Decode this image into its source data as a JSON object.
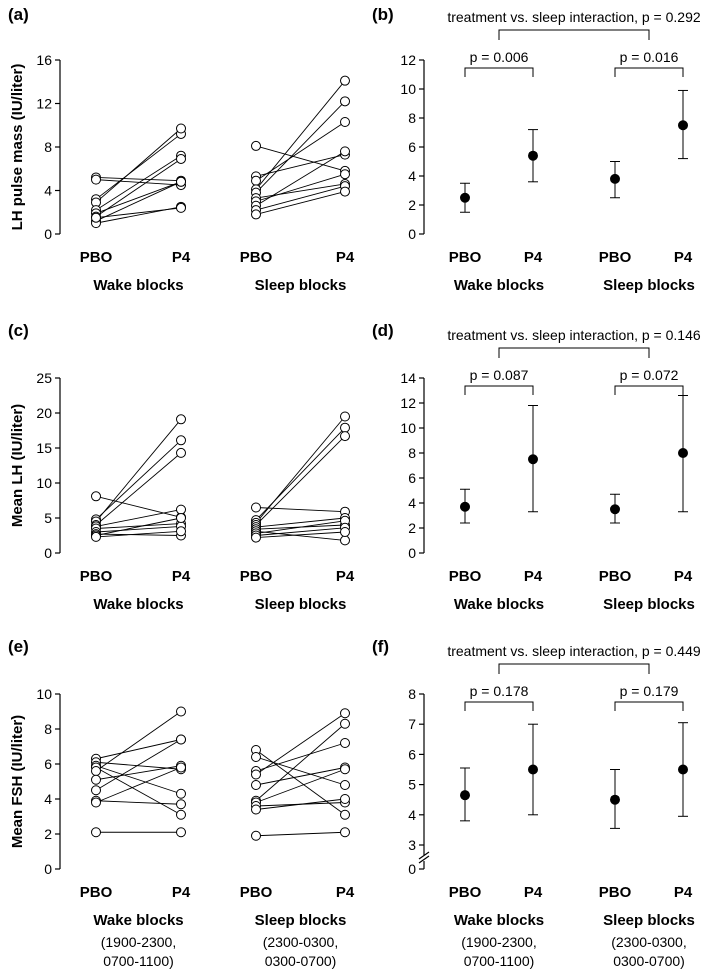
{
  "chart_data": [
    {
      "id": "a",
      "panel_label": "(a)",
      "type": "line",
      "ylabel": "LH pulse mass (IU/liter)",
      "ylim": [
        0,
        16
      ],
      "yticks": [
        0,
        4,
        8,
        12,
        16
      ],
      "categories": [
        "PBO",
        "P4",
        "PBO",
        "P4"
      ],
      "groups": [
        {
          "label": "Wake blocks",
          "sublabel": ""
        },
        {
          "label": "Sleep blocks",
          "sublabel": ""
        }
      ],
      "pairs": [
        [
          [
            5.2,
            4.9
          ],
          [
            5.0,
            4.5
          ],
          [
            3.2,
            9.2
          ],
          [
            2.9,
            9.7
          ],
          [
            2.2,
            7.2
          ],
          [
            1.9,
            4.8
          ],
          [
            1.6,
            6.9
          ],
          [
            1.2,
            4.8
          ],
          [
            1.0,
            2.5
          ],
          [
            1.5,
            2.4
          ]
        ],
        [
          [
            8.1,
            5.8
          ],
          [
            5.3,
            7.3
          ],
          [
            4.9,
            10.3
          ],
          [
            4.1,
            14.1
          ],
          [
            3.8,
            12.2
          ],
          [
            3.3,
            4.6
          ],
          [
            3.0,
            5.5
          ],
          [
            2.6,
            7.6
          ],
          [
            2.2,
            4.4
          ],
          [
            1.8,
            3.9
          ]
        ]
      ]
    },
    {
      "id": "b",
      "panel_label": "(b)",
      "type": "scatter",
      "ylim": [
        0,
        12
      ],
      "yticks": [
        0,
        2,
        4,
        6,
        8,
        10,
        12
      ],
      "categories": [
        "PBO",
        "P4",
        "PBO",
        "P4"
      ],
      "groups": [
        {
          "label": "Wake blocks",
          "sublabel": ""
        },
        {
          "label": "Sleep blocks",
          "sublabel": ""
        }
      ],
      "points": [
        {
          "y": 2.5,
          "lo": 1.5,
          "hi": 3.5
        },
        {
          "y": 5.4,
          "lo": 3.6,
          "hi": 7.2
        },
        {
          "y": 3.8,
          "lo": 2.5,
          "hi": 5.0
        },
        {
          "y": 7.5,
          "lo": 5.2,
          "hi": 9.9
        }
      ],
      "pvals": [
        "p = 0.006",
        "p = 0.016"
      ],
      "interaction": "treatment vs. sleep interaction, p = 0.292"
    },
    {
      "id": "c",
      "panel_label": "(c)",
      "type": "line",
      "ylabel": "Mean LH (IU/liter)",
      "ylim": [
        0,
        25
      ],
      "yticks": [
        0,
        5,
        10,
        15,
        20,
        25
      ],
      "categories": [
        "PBO",
        "P4",
        "PBO",
        "P4"
      ],
      "groups": [
        {
          "label": "Wake blocks",
          "sublabel": ""
        },
        {
          "label": "Sleep blocks",
          "sublabel": ""
        }
      ],
      "pairs": [
        [
          [
            8.1,
            5.1
          ],
          [
            4.8,
            16.1
          ],
          [
            4.5,
            19.1
          ],
          [
            4.0,
            14.3
          ],
          [
            3.8,
            6.2
          ],
          [
            3.5,
            4.2
          ],
          [
            3.0,
            3.8
          ],
          [
            2.7,
            2.5
          ],
          [
            2.5,
            5.0
          ],
          [
            2.3,
            3.1
          ]
        ],
        [
          [
            6.5,
            5.9
          ],
          [
            4.7,
            17.9
          ],
          [
            4.3,
            19.5
          ],
          [
            4.0,
            16.7
          ],
          [
            3.7,
            5.0
          ],
          [
            3.4,
            4.0
          ],
          [
            3.1,
            1.8
          ],
          [
            2.8,
            4.6
          ],
          [
            2.5,
            3.6
          ],
          [
            2.2,
            3.0
          ]
        ]
      ]
    },
    {
      "id": "d",
      "panel_label": "(d)",
      "type": "scatter",
      "ylim": [
        0,
        14
      ],
      "yticks": [
        0,
        2,
        4,
        6,
        8,
        10,
        12,
        14
      ],
      "categories": [
        "PBO",
        "P4",
        "PBO",
        "P4"
      ],
      "groups": [
        {
          "label": "Wake blocks",
          "sublabel": ""
        },
        {
          "label": "Sleep blocks",
          "sublabel": ""
        }
      ],
      "points": [
        {
          "y": 3.7,
          "lo": 2.4,
          "hi": 5.1
        },
        {
          "y": 7.5,
          "lo": 3.3,
          "hi": 11.8
        },
        {
          "y": 3.5,
          "lo": 2.4,
          "hi": 4.7
        },
        {
          "y": 8.0,
          "lo": 3.3,
          "hi": 12.6
        }
      ],
      "pvals": [
        "p = 0.087",
        "p = 0.072"
      ],
      "interaction": "treatment vs. sleep interaction, p = 0.146"
    },
    {
      "id": "e",
      "panel_label": "(e)",
      "type": "line",
      "ylabel": "Mean FSH (IU/liter)",
      "ylim": [
        0,
        10
      ],
      "yticks": [
        0,
        2,
        4,
        6,
        8,
        10
      ],
      "categories": [
        "PBO",
        "P4",
        "PBO",
        "P4"
      ],
      "groups": [
        {
          "label": "Wake blocks",
          "sublabel": "(1900-2300, 0700-1100)"
        },
        {
          "label": "Sleep blocks",
          "sublabel": "(2300-0300, 0300-0700)"
        }
      ],
      "pairs": [
        [
          [
            6.3,
            7.4
          ],
          [
            6.1,
            5.7
          ],
          [
            5.9,
            4.3
          ],
          [
            5.8,
            3.1
          ],
          [
            5.6,
            9.0
          ],
          [
            5.1,
            5.9
          ],
          [
            4.5,
            7.4
          ],
          [
            3.9,
            3.7
          ],
          [
            3.8,
            5.8
          ],
          [
            2.1,
            2.1
          ]
        ],
        [
          [
            6.8,
            3.1
          ],
          [
            6.4,
            4.8
          ],
          [
            5.6,
            7.2
          ],
          [
            5.4,
            8.9
          ],
          [
            4.8,
            5.8
          ],
          [
            3.9,
            8.3
          ],
          [
            3.8,
            5.7
          ],
          [
            3.6,
            3.8
          ],
          [
            3.4,
            4.0
          ],
          [
            1.9,
            2.1
          ]
        ]
      ]
    },
    {
      "id": "f",
      "panel_label": "(f)",
      "type": "scatter",
      "ylim": [
        3,
        8
      ],
      "yticks": [
        0,
        3,
        4,
        5,
        6,
        7,
        8
      ],
      "axis_break": true,
      "categories": [
        "PBO",
        "P4",
        "PBO",
        "P4"
      ],
      "groups": [
        {
          "label": "Wake blocks",
          "sublabel": "(1900-2300, 0700-1100)"
        },
        {
          "label": "Sleep blocks",
          "sublabel": "(2300-0300, 0300-0700)"
        }
      ],
      "points": [
        {
          "y": 4.65,
          "lo": 3.8,
          "hi": 5.55
        },
        {
          "y": 5.5,
          "lo": 4.0,
          "hi": 7.0
        },
        {
          "y": 4.5,
          "lo": 3.55,
          "hi": 5.5
        },
        {
          "y": 5.5,
          "lo": 3.95,
          "hi": 7.05
        }
      ],
      "pvals": [
        "p = 0.178",
        "p = 0.179"
      ],
      "interaction": "treatment vs. sleep interaction, p = 0.449"
    }
  ]
}
